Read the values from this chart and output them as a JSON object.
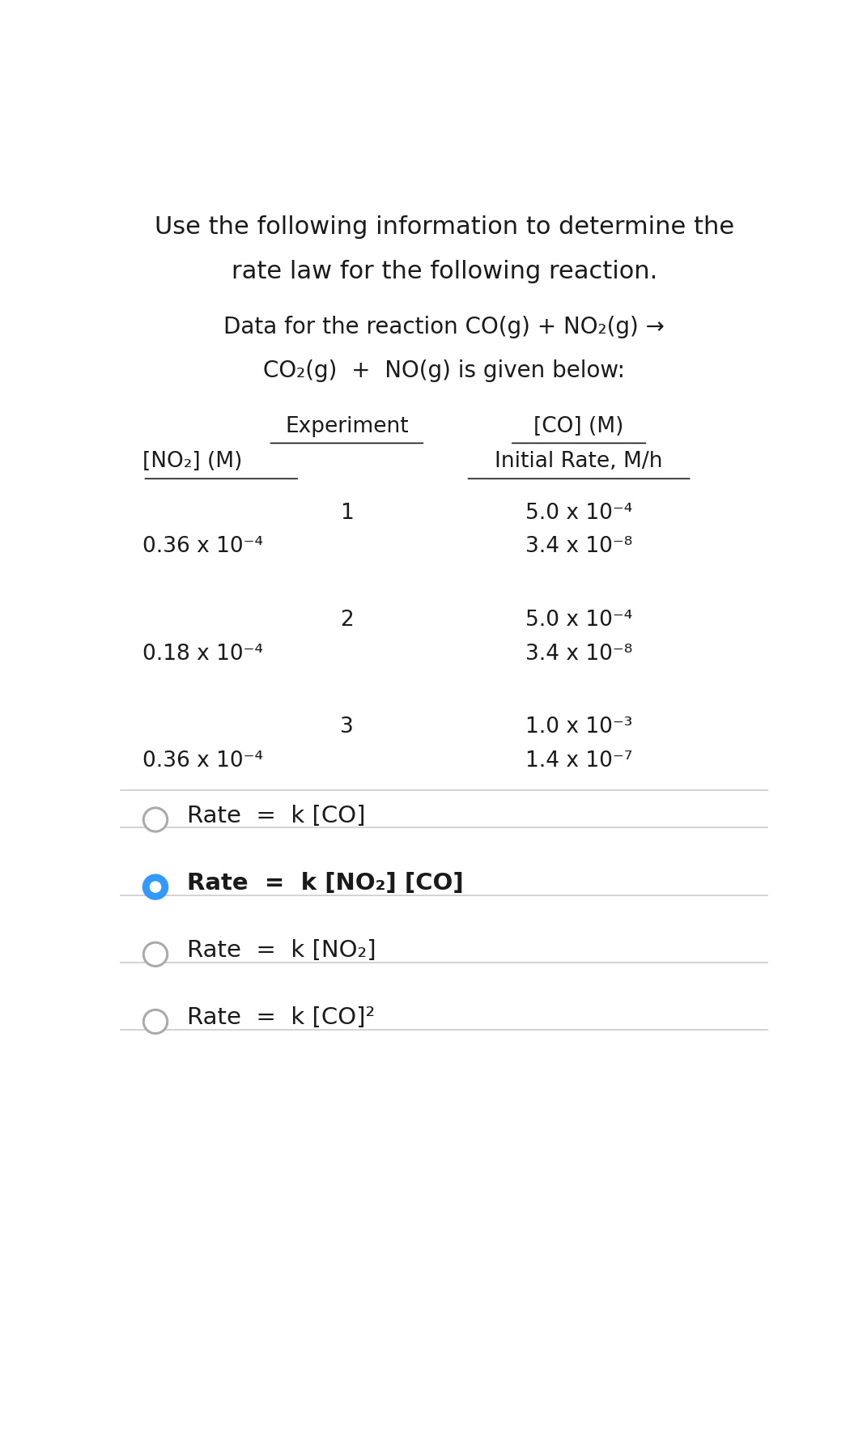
{
  "bg_color": "#ffffff",
  "text_color": "#1a1a1a",
  "title_line1": "Use the following information to determine the",
  "title_line2": "rate law for the following reaction.",
  "subtitle_line1": "Data for the reaction CO(g) + NO₂(g) →",
  "subtitle_line2": "CO₂(g)  +  NO(g) is given below:",
  "header_row1_col1": "Experiment",
  "header_row1_col2": "[CO] (M)",
  "header_row2_col1": "[NO₂] (M)",
  "header_row2_col2": "Initial Rate, M/h",
  "experiments": [
    {
      "num": "1",
      "co": "5.0 x 10⁻⁴",
      "no2": "0.36 x 10⁻⁴",
      "rate": "3.4 x 10⁻⁸"
    },
    {
      "num": "2",
      "co": "5.0 x 10⁻⁴",
      "no2": "0.18 x 10⁻⁴",
      "rate": "3.4 x 10⁻⁸"
    },
    {
      "num": "3",
      "co": "1.0 x 10⁻³",
      "no2": "0.36 x 10⁻⁴",
      "rate": "1.4 x 10⁻⁷"
    }
  ],
  "options": [
    {
      "label": "Rate  =  k [CO]",
      "selected": false
    },
    {
      "label": "Rate  =  k [NO₂] [CO]",
      "selected": true
    },
    {
      "label": "Rate  =  k [NO₂]",
      "selected": false
    },
    {
      "label": "Rate  =  k [CO]²",
      "selected": false
    }
  ],
  "font_size_title": 22,
  "font_size_subtitle": 20,
  "font_size_header": 19,
  "font_size_data": 19,
  "font_size_option": 21,
  "selected_color": "#3399ff",
  "unselected_color": "#aaaaaa",
  "divider_color": "#cccccc",
  "underline_color": "#1a1a1a"
}
